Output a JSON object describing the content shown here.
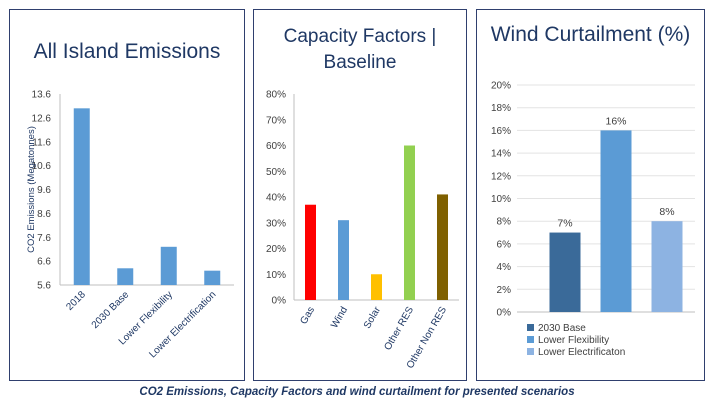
{
  "caption": "CO2 Emissions, Capacity Factors and wind curtailment for presented scenarios",
  "chart_data": [
    {
      "type": "bar",
      "title": "All Island Emissions",
      "ylabel": "CO2 Emissions (Megatonnes)",
      "xlabel": "",
      "categories": [
        "2018",
        "2030 Base",
        "Lower Flexibility",
        "Lower Electrification"
      ],
      "values": [
        13.0,
        6.3,
        7.2,
        6.2
      ],
      "ylim": [
        5.6,
        13.6
      ],
      "yticks": [
        "5.6",
        "6.6",
        "7.6",
        "8.6",
        "9.6",
        "10.6",
        "11.6",
        "12.6",
        "13.6"
      ],
      "colors": [
        "#5b9bd5"
      ],
      "grid": false
    },
    {
      "type": "bar",
      "title": "Capacity Factors | Baseline",
      "xlabel": "",
      "ylabel": "",
      "categories": [
        "Gas",
        "Wind",
        "Solar",
        "Other RES",
        "Other Non RES"
      ],
      "values": [
        0.37,
        0.31,
        0.1,
        0.6,
        0.41
      ],
      "ylim": [
        0,
        0.8
      ],
      "yticks": [
        "0%",
        "10%",
        "20%",
        "30%",
        "40%",
        "50%",
        "60%",
        "70%",
        "80%"
      ],
      "colors": [
        "#ff0000",
        "#5b9bd5",
        "#ffc000",
        "#92d050",
        "#7f6000"
      ],
      "grid": false
    },
    {
      "type": "bar",
      "title": "Wind Curtailment (%)",
      "xlabel": "",
      "ylabel": "",
      "series": [
        {
          "name": "2030 Base",
          "values": [
            0.07
          ],
          "label": "7%",
          "color": "#3a6a99"
        },
        {
          "name": "Lower Flexibility",
          "values": [
            0.16
          ],
          "label": "16%",
          "color": "#5b9bd5"
        },
        {
          "name": "Lower Electrificaton",
          "values": [
            0.08
          ],
          "label": "8%",
          "color": "#8db3e2"
        }
      ],
      "ylim": [
        0,
        0.2
      ],
      "yticks": [
        "0%",
        "2%",
        "4%",
        "6%",
        "8%",
        "10%",
        "12%",
        "14%",
        "16%",
        "18%",
        "20%"
      ],
      "grid": true,
      "legend": "bottom"
    }
  ]
}
